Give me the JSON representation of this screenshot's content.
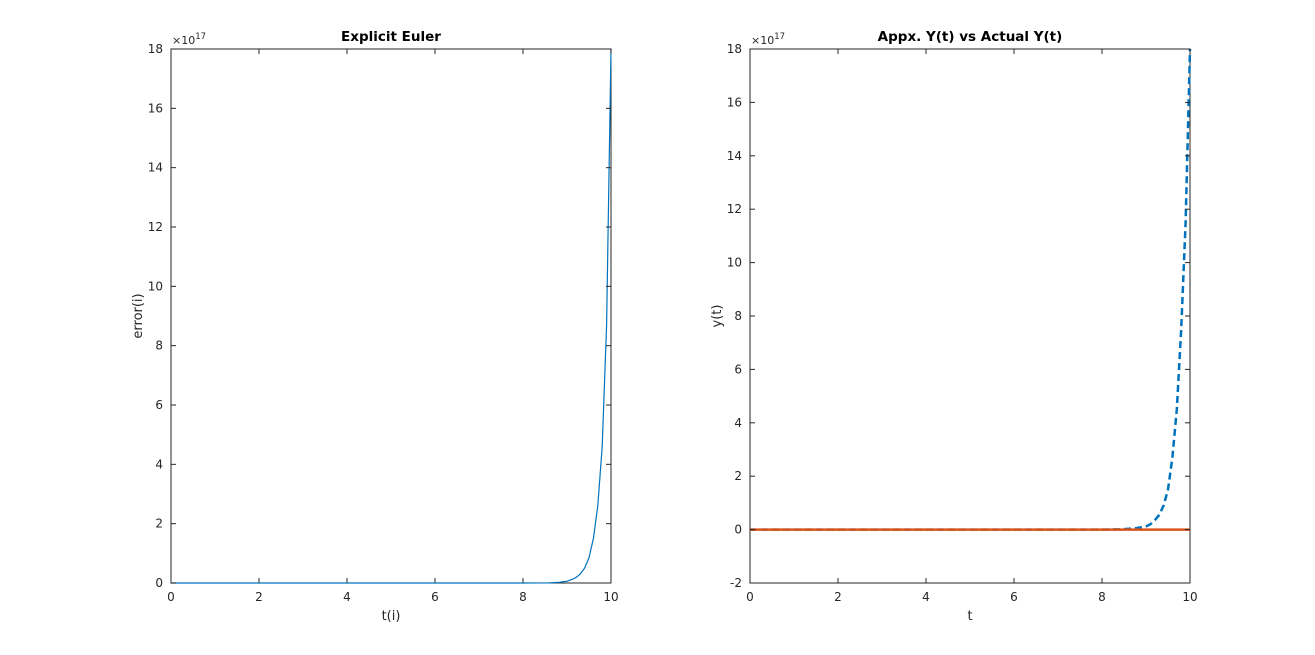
{
  "chart_data": [
    {
      "type": "line",
      "title": "Explicit Euler",
      "xlabel": "t(i)",
      "ylabel": "error(i)",
      "xlim": [
        0,
        10
      ],
      "ylim": [
        0,
        18
      ],
      "y_exponent": "17",
      "xticks": [
        "0",
        "2",
        "4",
        "6",
        "8",
        "10"
      ],
      "yticks": [
        "0",
        "2",
        "4",
        "6",
        "8",
        "10",
        "12",
        "14",
        "16",
        "18"
      ],
      "grid": false,
      "series": [
        {
          "color": "#0072BD",
          "style": "solid",
          "x": [
            0,
            1,
            2,
            3,
            4,
            5,
            6,
            7,
            7.5,
            8,
            8.4,
            8.6,
            8.8,
            9.0,
            9.1,
            9.2,
            9.3,
            9.4,
            9.5,
            9.6,
            9.7,
            9.8,
            9.9,
            10
          ],
          "y": [
            0,
            0,
            0,
            0,
            0,
            0,
            0,
            0,
            0,
            0,
            0.002,
            0.005,
            0.02,
            0.06,
            0.11,
            0.18,
            0.3,
            0.5,
            0.85,
            1.5,
            2.6,
            4.6,
            8.7,
            18
          ]
        }
      ]
    },
    {
      "type": "line",
      "title": "Appx. Y(t) vs Actual Y(t)",
      "xlabel": "t",
      "ylabel": "y(t)",
      "xlim": [
        0,
        10
      ],
      "ylim": [
        -2,
        18
      ],
      "y_exponent": "17",
      "xticks": [
        "0",
        "2",
        "4",
        "6",
        "8",
        "10"
      ],
      "yticks": [
        "-2",
        "0",
        "2",
        "4",
        "6",
        "8",
        "10",
        "12",
        "14",
        "16",
        "18"
      ],
      "grid": false,
      "series": [
        {
          "color": "#0072BD",
          "style": "dashed",
          "x": [
            0,
            1,
            2,
            3,
            4,
            5,
            6,
            7,
            8,
            8.4,
            8.6,
            8.8,
            9.0,
            9.1,
            9.2,
            9.3,
            9.4,
            9.5,
            9.6,
            9.7,
            9.8,
            9.9,
            10
          ],
          "y": [
            0,
            0,
            0,
            0,
            0,
            0,
            0,
            0,
            0,
            0.01,
            0.03,
            0.06,
            0.12,
            0.2,
            0.35,
            0.55,
            0.9,
            1.5,
            2.7,
            4.5,
            7.5,
            11.5,
            18
          ]
        },
        {
          "color": "#D95319",
          "style": "solid",
          "x": [
            0,
            10
          ],
          "y": [
            0,
            0
          ]
        }
      ]
    }
  ]
}
